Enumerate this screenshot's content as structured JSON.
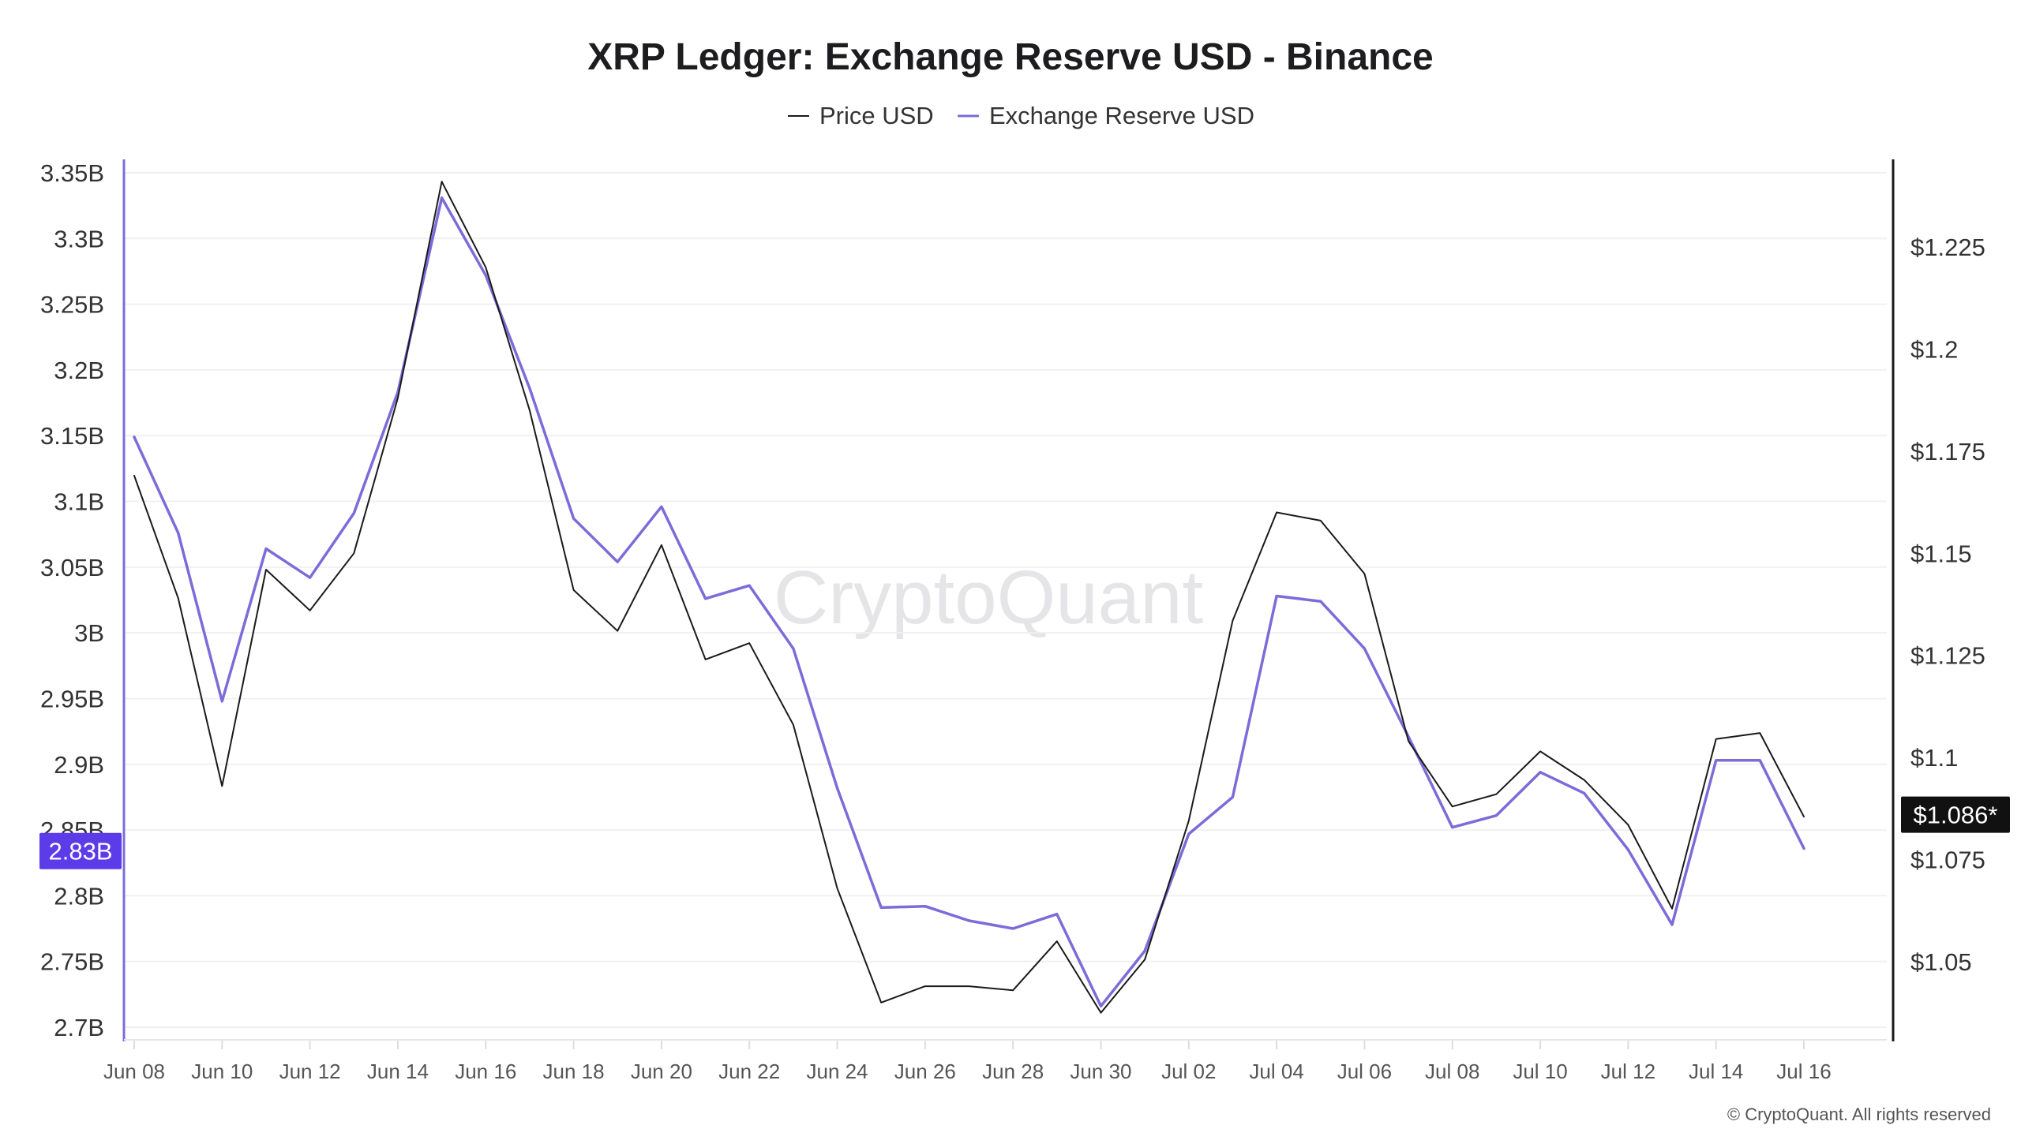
{
  "chart_data": {
    "type": "line",
    "title": "XRP Ledger: Exchange Reserve USD - Binance",
    "watermark": "CryptoQuant",
    "copyright": "© CryptoQuant. All rights reserved",
    "x": [
      "Jun 08",
      "Jun 09",
      "Jun 10",
      "Jun 11",
      "Jun 12",
      "Jun 13",
      "Jun 14",
      "Jun 15",
      "Jun 16",
      "Jun 17",
      "Jun 18",
      "Jun 19",
      "Jun 20",
      "Jun 21",
      "Jun 22",
      "Jun 23",
      "Jun 24",
      "Jun 25",
      "Jun 26",
      "Jun 27",
      "Jun 28",
      "Jun 29",
      "Jun 30",
      "Jul 01",
      "Jul 02",
      "Jul 03",
      "Jul 04",
      "Jul 05",
      "Jul 06",
      "Jul 07",
      "Jul 08",
      "Jul 09",
      "Jul 10",
      "Jul 11",
      "Jul 12",
      "Jul 13",
      "Jul 14",
      "Jul 15",
      "Jul 16"
    ],
    "x_tick_labels": [
      "Jun 08",
      "Jun 10",
      "Jun 12",
      "Jun 14",
      "Jun 16",
      "Jun 18",
      "Jun 20",
      "Jun 22",
      "Jun 24",
      "Jun 26",
      "Jun 28",
      "Jun 30",
      "Jul 02",
      "Jul 04",
      "Jul 06",
      "Jul 08",
      "Jul 10",
      "Jul 12",
      "Jul 14",
      "Jul 16"
    ],
    "legend_position": "top-center",
    "grid": true,
    "left_axis": {
      "ylim": [
        2.7,
        3.35
      ],
      "ticks": [
        3.35,
        3.3,
        3.25,
        3.2,
        3.15,
        3.1,
        3.05,
        3.0,
        2.95,
        2.9,
        2.85,
        2.8,
        2.75,
        2.7
      ],
      "tick_labels": [
        "3.35B",
        "3.3B",
        "3.25B",
        "3.2B",
        "3.15B",
        "3.1B",
        "3.05B",
        "3B",
        "2.95B",
        "2.9B",
        "2.85B",
        "2.8B",
        "2.75B",
        "2.7B"
      ],
      "current_label": "2.83B",
      "current_value": 2.834,
      "current_color": "#5b3ce8"
    },
    "right_axis": {
      "ylim": [
        1.0295,
        1.2525
      ],
      "ticks": [
        1.225,
        1.2,
        1.175,
        1.15,
        1.125,
        1.1,
        1.075,
        1.05
      ],
      "tick_labels": [
        "$1.225",
        "$1.2",
        "$1.175",
        "$1.15",
        "$1.125",
        "$1.1",
        "$1.075",
        "$1.05"
      ],
      "current_label": "$1.086*",
      "current_value": 1.086,
      "current_color": "#111111"
    },
    "series": [
      {
        "name": "Price USD",
        "axis": "right",
        "color": "#1a1a1a",
        "values": [
          1.169,
          1.139,
          1.093,
          1.146,
          1.136,
          1.15,
          1.188,
          1.241,
          1.22,
          1.185,
          1.141,
          1.131,
          1.152,
          1.124,
          1.128,
          1.108,
          1.068,
          1.04,
          1.044,
          1.044,
          1.043,
          1.055,
          1.0375,
          1.0505,
          1.0845,
          1.1335,
          1.16,
          1.158,
          1.145,
          1.104,
          1.088,
          1.091,
          1.1015,
          1.0945,
          1.0835,
          1.063,
          1.1045,
          1.106,
          1.0855
        ]
      },
      {
        "name": "Exchange Reserve USD",
        "axis": "left",
        "color": "#7b6cd9",
        "values": [
          3.149,
          3.076,
          2.948,
          3.064,
          3.042,
          3.091,
          3.183,
          3.331,
          3.272,
          3.186,
          3.087,
          3.054,
          3.096,
          3.026,
          3.036,
          2.988,
          2.882,
          2.791,
          2.792,
          2.781,
          2.775,
          2.786,
          2.716,
          2.758,
          2.847,
          2.875,
          3.028,
          3.024,
          2.988,
          2.921,
          2.852,
          2.861,
          2.894,
          2.878,
          2.835,
          2.778,
          2.903,
          2.903,
          2.836
        ]
      }
    ]
  }
}
